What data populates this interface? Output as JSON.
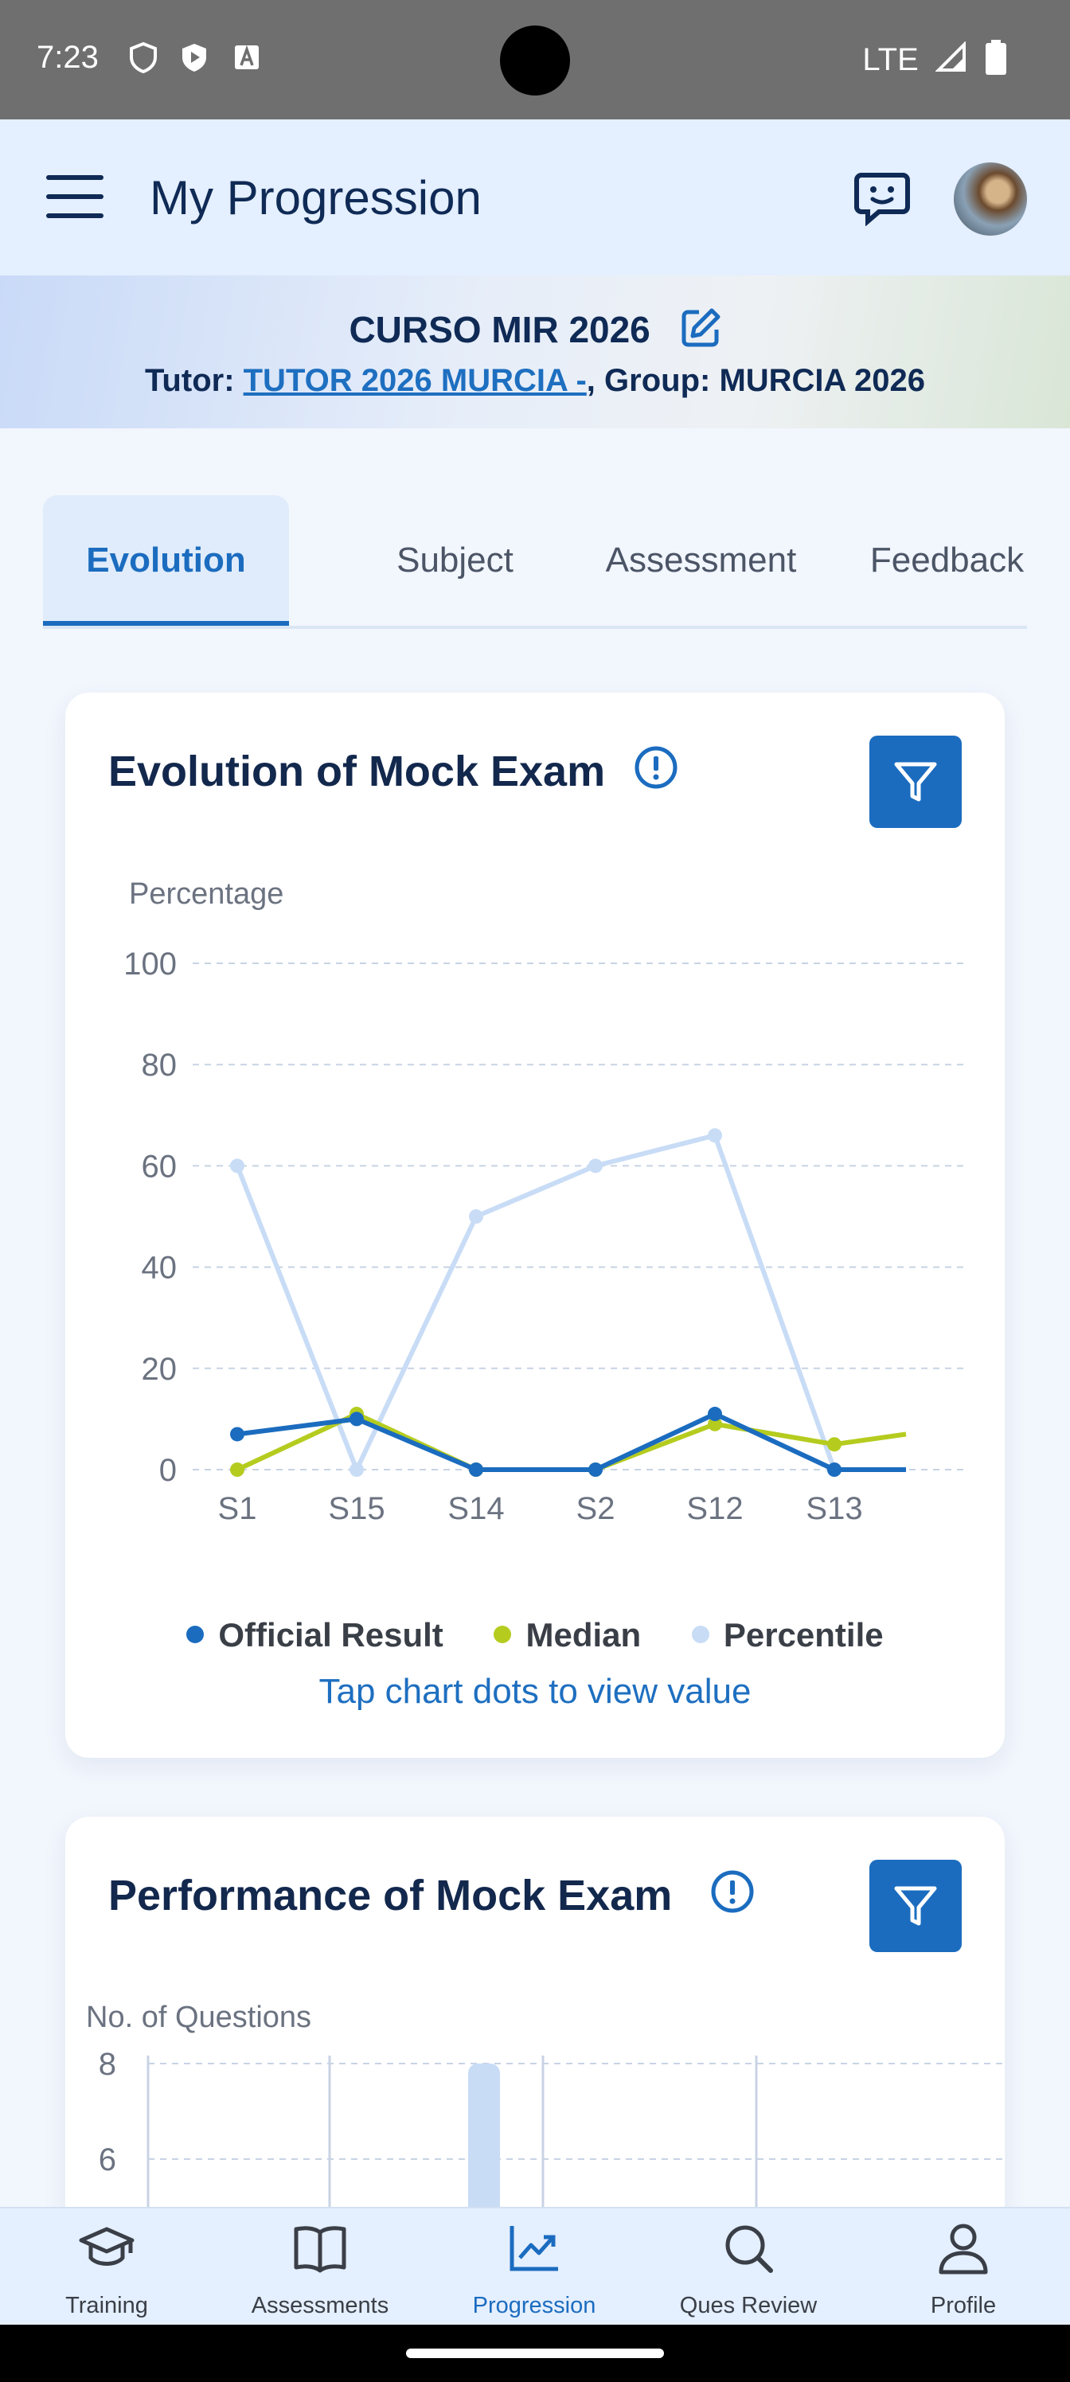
{
  "status_bar": {
    "time": "7:23",
    "network": "LTE"
  },
  "app_bar": {
    "title": "My Progression"
  },
  "banner": {
    "course": "CURSO MIR 2026",
    "tutor_label": "Tutor: ",
    "tutor_name": "TUTOR 2026 MURCIA -",
    "group_text": ", Group: MURCIA 2026"
  },
  "tabs": [
    {
      "label": "Evolution",
      "active": true
    },
    {
      "label": "Subject",
      "active": false
    },
    {
      "label": "Assessment",
      "active": false
    },
    {
      "label": "Feedback",
      "active": false
    }
  ],
  "evolution_card": {
    "title": "Evolution of Mock Exam",
    "tap_hint": "Tap chart dots to view value"
  },
  "performance_card": {
    "title": "Performance of Mock Exam"
  },
  "colors": {
    "official": "#1b6cbf",
    "median": "#b5cc1f",
    "percentile": "#c8dcf6",
    "accent": "#1b6cbf"
  },
  "chart_data": [
    {
      "type": "line",
      "ylabel": "Percentage",
      "ylim": [
        0,
        100
      ],
      "yticks": [
        "100",
        "80",
        "60",
        "40",
        "20",
        "0"
      ],
      "categories": [
        "S1",
        "S15",
        "S14",
        "S2",
        "S12",
        "S13"
      ],
      "x": [
        0,
        1,
        2,
        3,
        4,
        5,
        5.6
      ],
      "series": [
        {
          "name": "Official Result",
          "values": [
            7,
            10,
            0,
            0,
            11,
            0,
            0
          ]
        },
        {
          "name": "Median",
          "values": [
            0,
            11,
            0,
            0,
            9,
            5,
            7
          ]
        },
        {
          "name": "Percentile",
          "values": [
            60,
            0,
            50,
            60,
            66,
            0,
            0
          ]
        }
      ],
      "grid": true,
      "legend": "bottom"
    },
    {
      "type": "bar",
      "ylabel": "No. of Questions",
      "yticks": [
        "8",
        "6"
      ],
      "ylim": [
        4,
        8
      ],
      "values": [
        8
      ],
      "grid": true
    }
  ],
  "bottom_nav": [
    {
      "label": "Training",
      "icon": "graduation-cap-icon"
    },
    {
      "label": "Assessments",
      "icon": "book-icon"
    },
    {
      "label": "Progression",
      "icon": "chart-icon",
      "active": true
    },
    {
      "label": "Ques Review",
      "icon": "search-icon"
    },
    {
      "label": "Profile",
      "icon": "person-icon"
    }
  ]
}
